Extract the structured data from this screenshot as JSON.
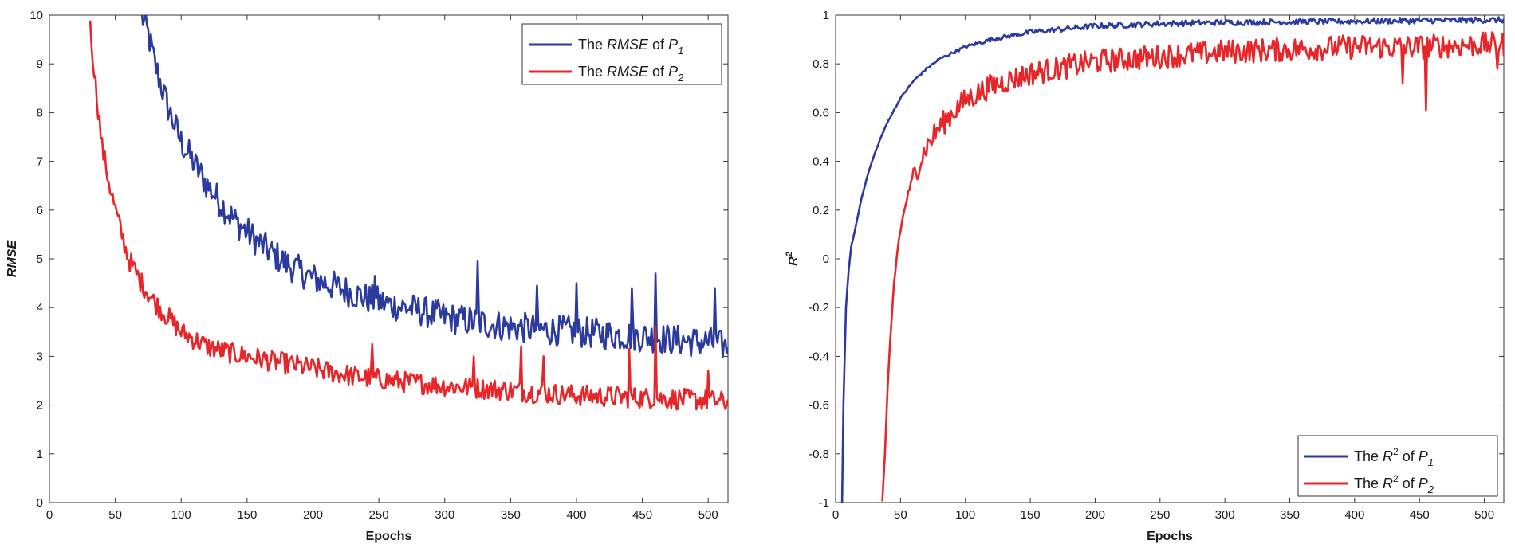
{
  "chart_data": [
    {
      "type": "line",
      "title": "",
      "xlabel": "Epochs",
      "ylabel": "RMSE",
      "xlim": [
        0,
        515
      ],
      "ylim": [
        0,
        10
      ],
      "xticks": [
        0,
        50,
        100,
        150,
        200,
        250,
        300,
        350,
        400,
        450,
        500
      ],
      "yticks": [
        0,
        1,
        2,
        3,
        4,
        5,
        6,
        7,
        8,
        9,
        10
      ],
      "grid": false,
      "legend_position": "top-right",
      "series": [
        {
          "name": "The RMSE of P1",
          "legend_parts": {
            "prefix": "The ",
            "metric": "RMSE",
            "mid": " of ",
            "var": "P",
            "sub": "1"
          },
          "color": "#2b3a9e",
          "x": [
            70,
            75,
            80,
            90,
            100,
            120,
            140,
            160,
            180,
            200,
            220,
            240,
            260,
            280,
            300,
            325,
            350,
            375,
            400,
            425,
            455,
            470,
            490,
            500,
            505,
            515
          ],
          "y": [
            10.0,
            9.6,
            9.0,
            8.1,
            7.4,
            6.5,
            5.8,
            5.3,
            4.9,
            4.6,
            4.4,
            4.2,
            4.05,
            3.95,
            3.8,
            3.7,
            3.6,
            3.55,
            3.5,
            3.45,
            3.4,
            3.35,
            3.3,
            3.3,
            3.25,
            3.2
          ],
          "spikes": [
            [
              247,
              4.65
            ],
            [
              325,
              4.95
            ],
            [
              370,
              4.45
            ],
            [
              400,
              4.5
            ],
            [
              460,
              4.7
            ],
            [
              505,
              4.4
            ],
            [
              442,
              4.4
            ]
          ]
        },
        {
          "name": "The RMSE of P2",
          "legend_parts": {
            "prefix": "The ",
            "metric": "RMSE",
            "mid": " of ",
            "var": "P",
            "sub": "2"
          },
          "color": "#e8262a",
          "x": [
            30,
            35,
            40,
            45,
            50,
            60,
            70,
            80,
            90,
            100,
            120,
            140,
            160,
            180,
            200,
            230,
            260,
            300,
            350,
            400,
            450,
            500,
            515
          ],
          "y": [
            10.0,
            8.6,
            7.3,
            6.6,
            6.0,
            5.0,
            4.5,
            4.1,
            3.8,
            3.5,
            3.2,
            3.05,
            2.95,
            2.85,
            2.75,
            2.6,
            2.5,
            2.4,
            2.3,
            2.2,
            2.15,
            2.1,
            2.05
          ],
          "spikes": [
            [
              245,
              3.25
            ],
            [
              322,
              3.0
            ],
            [
              358,
              3.2
            ],
            [
              375,
              3.0
            ],
            [
              440,
              3.15
            ],
            [
              460,
              3.6
            ],
            [
              500,
              2.7
            ]
          ]
        }
      ]
    },
    {
      "type": "line",
      "title": "",
      "xlabel": "Epochs",
      "ylabel": "R2",
      "ylabel_parts": {
        "base": "R",
        "sup": "2"
      },
      "xlim": [
        0,
        515
      ],
      "ylim": [
        -1,
        1
      ],
      "xticks": [
        0,
        50,
        100,
        150,
        200,
        250,
        300,
        350,
        400,
        450,
        500
      ],
      "yticks": [
        -1,
        -0.8,
        -0.6,
        -0.4,
        -0.2,
        0,
        0.2,
        0.4,
        0.6,
        0.8,
        1
      ],
      "ytick_labels": [
        "-1",
        "-0.8",
        "-0.6",
        "-0.4",
        "-0.2",
        "0",
        "0.2",
        "0.4",
        "0.6",
        "0.8",
        "1"
      ],
      "grid": false,
      "legend_position": "bottom-right",
      "series": [
        {
          "name": "The R2 of P1",
          "legend_parts": {
            "prefix": "The ",
            "metric": "R",
            "sup": "2",
            "mid": " of ",
            "var": "P",
            "sub": "1"
          },
          "color": "#2b3a9e",
          "x": [
            5,
            6,
            8,
            10,
            12,
            15,
            20,
            25,
            30,
            35,
            40,
            45,
            50,
            60,
            70,
            80,
            100,
            120,
            150,
            200,
            250,
            300,
            400,
            500,
            515
          ],
          "y": [
            -1.0,
            -0.6,
            -0.2,
            -0.05,
            0.05,
            0.12,
            0.25,
            0.35,
            0.43,
            0.5,
            0.56,
            0.61,
            0.66,
            0.73,
            0.78,
            0.82,
            0.87,
            0.9,
            0.93,
            0.955,
            0.965,
            0.97,
            0.975,
            0.98,
            0.98
          ],
          "spikes": []
        },
        {
          "name": "The R2 of P2",
          "legend_parts": {
            "prefix": "The ",
            "metric": "R",
            "sup": "2",
            "mid": " of ",
            "var": "P",
            "sub": "2"
          },
          "color": "#e8262a",
          "x": [
            36,
            38,
            40,
            42,
            45,
            48,
            50,
            55,
            60,
            70,
            80,
            90,
            100,
            120,
            150,
            180,
            200,
            250,
            300,
            350,
            400,
            450,
            500,
            515
          ],
          "y": [
            -1.0,
            -0.8,
            -0.55,
            -0.35,
            -0.1,
            0.05,
            0.12,
            0.25,
            0.34,
            0.46,
            0.54,
            0.6,
            0.65,
            0.71,
            0.76,
            0.79,
            0.81,
            0.83,
            0.85,
            0.86,
            0.87,
            0.87,
            0.88,
            0.88
          ],
          "spikes": [
            [
              437,
              0.72
            ],
            [
              455,
              0.61
            ],
            [
              510,
              0.78
            ]
          ]
        }
      ]
    }
  ]
}
